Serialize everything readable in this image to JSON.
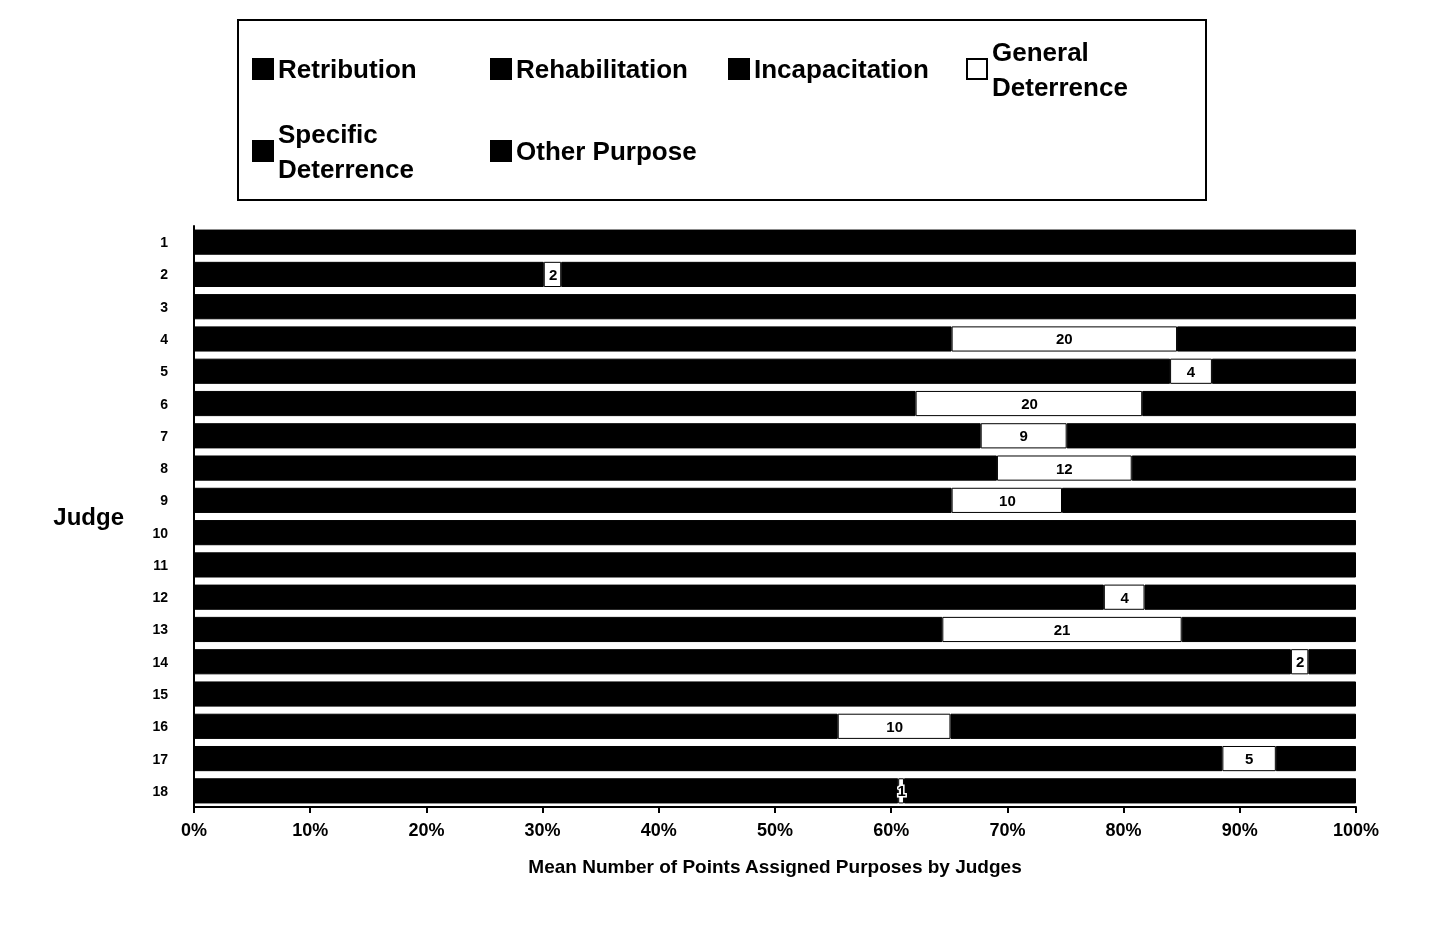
{
  "chart_data": {
    "type": "bar",
    "orientation": "horizontal",
    "stacked": true,
    "xlabel": "Mean Number of Points Assigned Purposes by Judges",
    "ylabel": "Judge",
    "legend": "top",
    "annotations": [
      {
        "text": "2",
        "x": 30.9,
        "y": "2"
      },
      {
        "text": "20",
        "x": 74.9,
        "y": "4"
      },
      {
        "text": "4",
        "x": 85.8,
        "y": "5"
      },
      {
        "text": "20",
        "x": 71.9,
        "y": "6"
      },
      {
        "text": "9",
        "x": 71.4,
        "y": "7"
      },
      {
        "text": "12",
        "x": 74.9,
        "y": "8"
      },
      {
        "text": "10",
        "x": 70.0,
        "y": "9"
      },
      {
        "text": "4",
        "x": 80.1,
        "y": "12"
      },
      {
        "text": "21",
        "x": 74.7,
        "y": "13"
      },
      {
        "text": "2",
        "x": 95.2,
        "y": "14"
      },
      {
        "text": "10",
        "x": 60.3,
        "y": "16"
      },
      {
        "text": "5",
        "x": 90.8,
        "y": "17"
      },
      {
        "text": "1",
        "x": 60.9,
        "y": "18"
      }
    ],
    "categories": [
      "1",
      "2",
      "3",
      "4",
      "5",
      "6",
      "7",
      "8",
      "9",
      "10",
      "11",
      "12",
      "13",
      "14",
      "15",
      "16",
      "17",
      "18"
    ],
    "xlim": [
      0,
      100
    ],
    "xticks": [
      {
        "value": 0,
        "label": "0%"
      },
      {
        "value": 10,
        "label": "10%"
      },
      {
        "value": 20,
        "label": "20%"
      },
      {
        "value": 30,
        "label": "30%"
      },
      {
        "value": 40,
        "label": "40%"
      },
      {
        "value": 50,
        "label": "50%"
      },
      {
        "value": 60,
        "label": "60%"
      },
      {
        "value": 70,
        "label": "70%"
      },
      {
        "value": 80,
        "label": "80%"
      },
      {
        "value": 90,
        "label": "90%"
      },
      {
        "value": 100,
        "label": "100%"
      }
    ],
    "series": [
      {
        "color": "#000000",
        "values": [
          100,
          30.1,
          100,
          65.2,
          84.0,
          62.1,
          67.7,
          69.1,
          65.2,
          100,
          100,
          78.3,
          64.4,
          94.4,
          100,
          55.4,
          88.5,
          60.6
        ]
      },
      {
        "name": "General Deterrence",
        "color": "#ffffff",
        "values": [
          null,
          1.5,
          null,
          19.4,
          3.6,
          19.5,
          7.4,
          11.6,
          9.5,
          null,
          null,
          3.5,
          20.6,
          1.5,
          null,
          9.7,
          4.6,
          0.5
        ]
      },
      {
        "color": "#000000",
        "values": [
          null,
          68.4,
          null,
          15.4,
          12.4,
          18.4,
          24.9,
          19.3,
          25.3,
          null,
          null,
          18.2,
          15.0,
          4.1,
          null,
          34.9,
          6.9,
          38.9
        ]
      },
      {
        "name": "Retribution",
        "color": "#000000",
        "values": [
          null,
          null,
          null,
          null,
          null,
          null,
          null,
          null,
          null,
          null,
          null,
          null,
          null,
          null,
          null,
          null,
          null,
          null
        ]
      },
      {
        "name": "Rehabilitation",
        "color": "#000000",
        "values": [
          null,
          null,
          null,
          null,
          null,
          null,
          null,
          null,
          null,
          null,
          null,
          null,
          null,
          null,
          null,
          null,
          null,
          null
        ]
      },
      {
        "name": "Incapacitation",
        "color": "#000000",
        "values": [
          null,
          null,
          null,
          null,
          null,
          null,
          null,
          null,
          null,
          null,
          null,
          null,
          null,
          null,
          null,
          null,
          null,
          null
        ]
      },
      {
        "name": "Specific Deterrence",
        "color": "#000000",
        "values": [
          null,
          null,
          null,
          null,
          null,
          null,
          null,
          null,
          null,
          null,
          null,
          null,
          null,
          null,
          null,
          null,
          null,
          null
        ]
      },
      {
        "name": "Other Purpose",
        "color": "#000000",
        "values": [
          null,
          null,
          null,
          null,
          null,
          null,
          null,
          null,
          null,
          null,
          null,
          null,
          null,
          null,
          null,
          null,
          null,
          null
        ]
      }
    ]
  }
}
